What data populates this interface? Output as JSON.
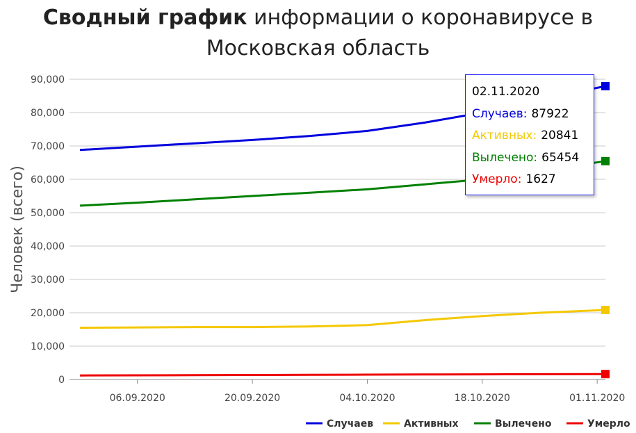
{
  "title": {
    "bold": "Сводный график",
    "rest": "информации о коронавирусе в",
    "line2": "Московская область"
  },
  "colors": {
    "cases": "#0000dd",
    "active": "#f4c800",
    "recovered": "#008000",
    "deaths": "#ee0000"
  },
  "tooltip": {
    "date": "02.11.2020",
    "rows": [
      {
        "label": "Случаев:",
        "value": "87922",
        "color": "#0000dd"
      },
      {
        "label": "Активных:",
        "value": "20841",
        "color": "#f4c800"
      },
      {
        "label": "Вылечено:",
        "value": "65454",
        "color": "#008000"
      },
      {
        "label": "Умерло:",
        "value": "1627",
        "color": "#ee0000"
      }
    ]
  },
  "chart_data": {
    "type": "line",
    "title": "Сводный график информации о коронавирусе в Московская область",
    "xlabel": "",
    "ylabel": "Человек (всего)",
    "ylim": [
      0,
      90000
    ],
    "yticks": [
      0,
      10000,
      20000,
      30000,
      40000,
      50000,
      60000,
      70000,
      80000,
      90000
    ],
    "ytick_labels": [
      "0",
      "10,000",
      "20,000",
      "30,000",
      "40,000",
      "50,000",
      "60,000",
      "70,000",
      "80,000",
      "90,000"
    ],
    "xlim": [
      "2020-08-30",
      "2020-11-02"
    ],
    "xticks": [
      "2020-09-06",
      "2020-09-20",
      "2020-10-04",
      "2020-10-18",
      "2020-11-01"
    ],
    "xtick_labels": [
      "06.09.2020",
      "20.09.2020",
      "04.10.2020",
      "18.10.2020",
      "01.11.2020"
    ],
    "x": [
      "2020-08-30",
      "2020-09-06",
      "2020-09-13",
      "2020-09-20",
      "2020-09-27",
      "2020-10-04",
      "2020-10-11",
      "2020-10-18",
      "2020-10-25",
      "2020-11-02"
    ],
    "series": [
      {
        "name": "Случаев",
        "color": "#0000dd",
        "values": [
          68800,
          69800,
          70800,
          71800,
          73000,
          74500,
          77000,
          80000,
          84000,
          87922
        ]
      },
      {
        "name": "Активных",
        "color": "#f4c800",
        "values": [
          15500,
          15600,
          15700,
          15700,
          15900,
          16300,
          17800,
          19000,
          20000,
          20841
        ]
      },
      {
        "name": "Вылечено",
        "color": "#008000",
        "values": [
          52100,
          53000,
          54000,
          55000,
          56000,
          57000,
          58500,
          60000,
          62500,
          65454
        ]
      },
      {
        "name": "Умерло",
        "color": "#ee0000",
        "values": [
          1200,
          1250,
          1300,
          1350,
          1400,
          1450,
          1500,
          1550,
          1590,
          1627
        ]
      }
    ],
    "legend_position": "bottom-right",
    "grid": true
  }
}
